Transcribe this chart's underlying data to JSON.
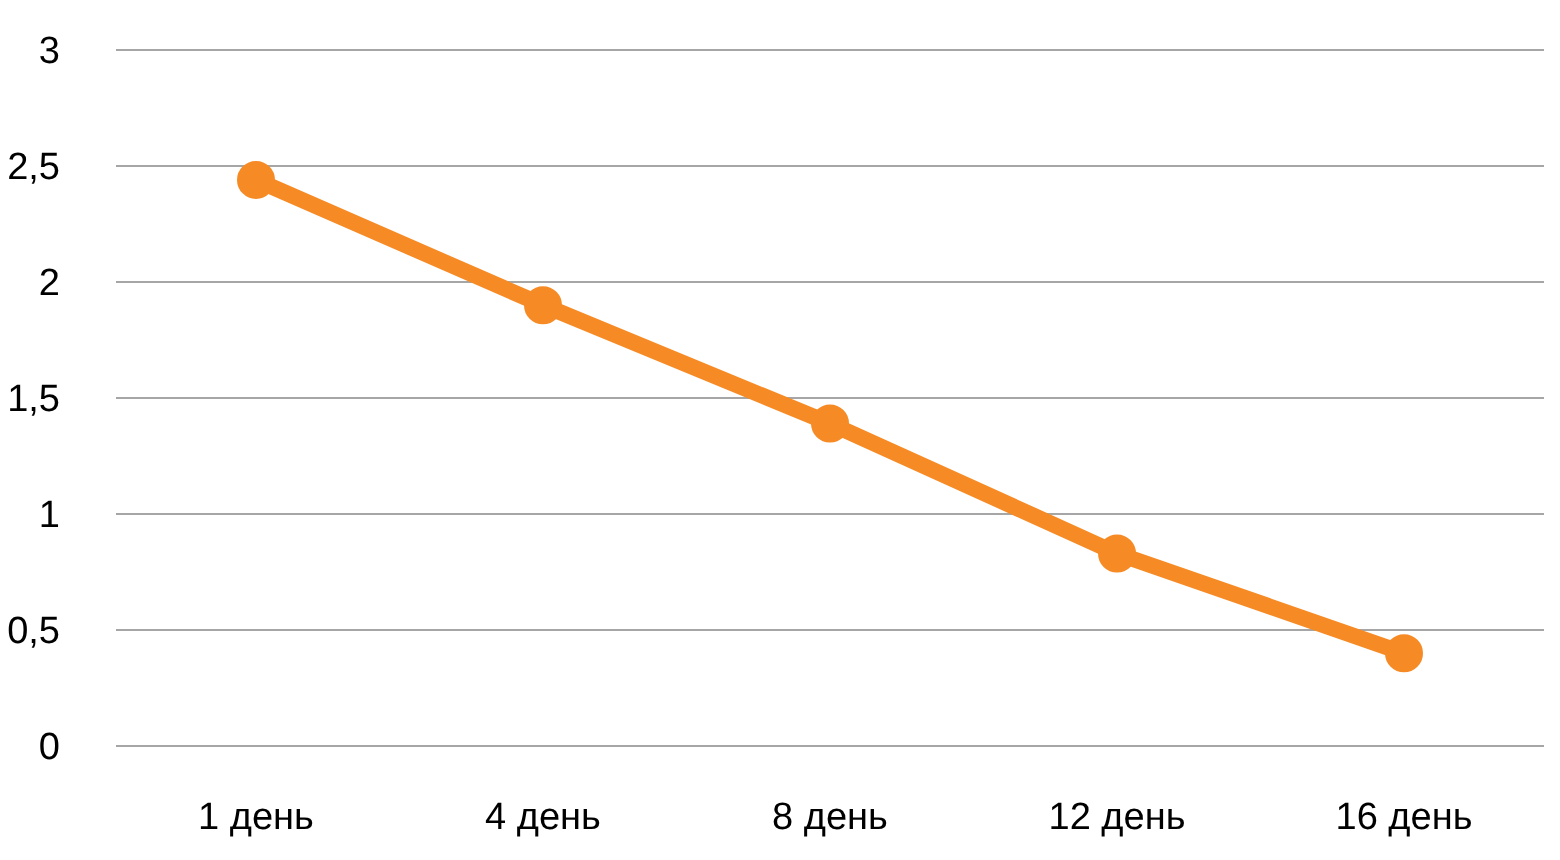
{
  "chart_data": {
    "type": "line",
    "categories": [
      "1 день",
      "4 день",
      "8 день",
      "12 день",
      "16 день"
    ],
    "values": [
      2.44,
      1.9,
      1.39,
      0.83,
      0.4
    ],
    "color": "#f68b26",
    "ylim": [
      0,
      3
    ],
    "yticks": [
      0,
      {
        "value": 0.5,
        "label": "0,5"
      },
      1,
      {
        "value": 1.5,
        "label": "1,5"
      },
      2,
      {
        "value": 2.5,
        "label": "2,5"
      },
      3
    ],
    "grid": "y",
    "marker": "circle",
    "line_style": "solid"
  }
}
